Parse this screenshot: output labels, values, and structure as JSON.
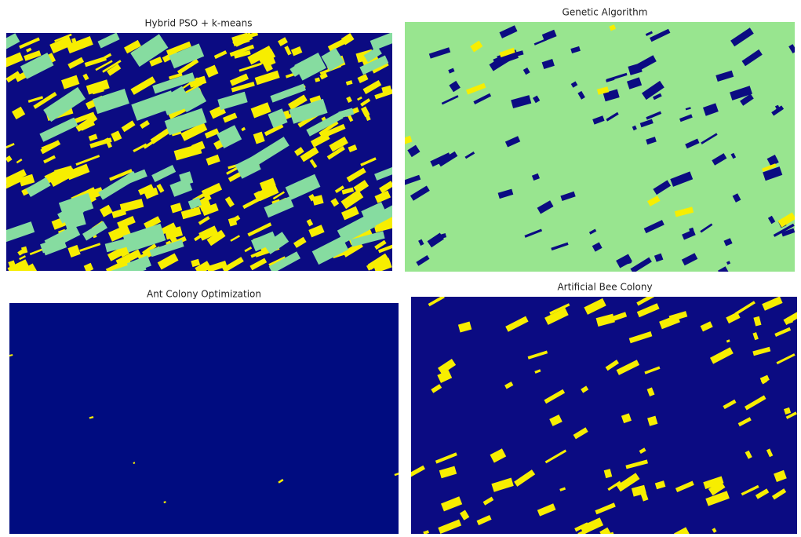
{
  "panels": [
    {
      "title": "Hybrid PSO + k-means"
    },
    {
      "title": "Genetic Algorithm"
    },
    {
      "title": "Ant Colony Optimization"
    },
    {
      "title": "Artificial Bee Colony"
    }
  ]
}
